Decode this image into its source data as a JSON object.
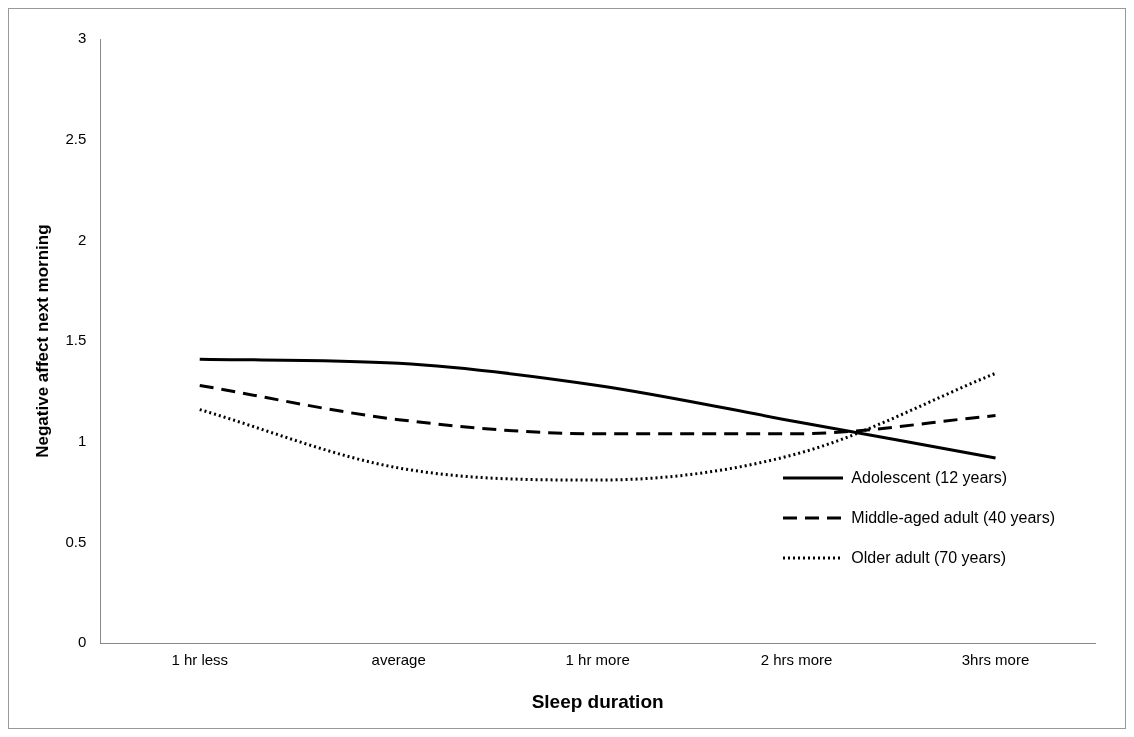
{
  "chart_data": {
    "type": "line",
    "xlabel": "Sleep duration",
    "ylabel": "Negative affect next morning",
    "categories": [
      "1 hr less",
      "average",
      "1 hr more",
      "2 hrs more",
      "3hrs more"
    ],
    "series": [
      {
        "name": "Adolescent (12 years)",
        "color": "#000000",
        "line_style": "solid",
        "values": [
          1.41,
          1.39,
          1.28,
          1.1,
          0.92
        ]
      },
      {
        "name": "Middle-aged adult (40 years)",
        "color": "#000000",
        "line_style": "dashed",
        "values": [
          1.28,
          1.11,
          1.04,
          1.04,
          1.13
        ]
      },
      {
        "name": "Older adult (70 years)",
        "color": "#000000",
        "line_style": "dotted",
        "values": [
          1.16,
          0.87,
          0.81,
          0.94,
          1.34
        ]
      }
    ],
    "ylim": [
      0,
      3
    ],
    "yticks": [
      0,
      0.5,
      1,
      1.5,
      2,
      2.5,
      3
    ],
    "grid": false,
    "legend": "bottom right",
    "marker": "none"
  }
}
